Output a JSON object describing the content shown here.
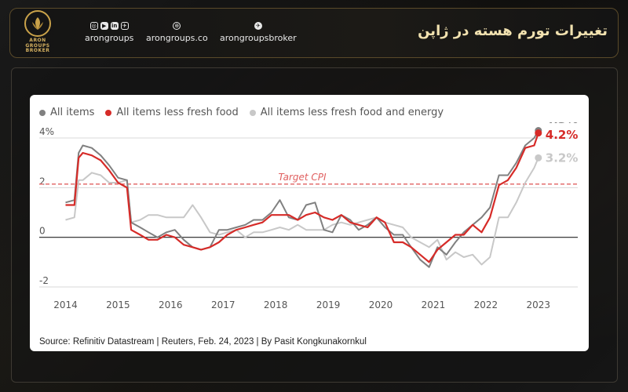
{
  "header": {
    "title": "تغییرات تورم هسته در ژاپن",
    "logo_text_lines": [
      "ARON",
      "GROUPS",
      "BROKER"
    ],
    "socials": [
      {
        "label": "arongroups",
        "icons": [
          "instagram-icon",
          "youtube-icon",
          "linkedin-icon",
          "telegram-square-icon"
        ]
      },
      {
        "label": "arongroups.co",
        "icons": [
          "globe-icon"
        ]
      },
      {
        "label": "arongroupsbroker",
        "icons": [
          "telegram-icon"
        ]
      }
    ]
  },
  "colors": {
    "accent_gold": "#c9a24a",
    "all_items": "#808080",
    "less_fresh_food": "#d62b28",
    "less_fresh_food_energy": "#c8c8c8",
    "target_line": "#e06060"
  },
  "source_text": "Source: Refinitiv Datastream | Reuters, Feb. 24, 2023 | By Pasit Kongkunakornkul",
  "chart_data": {
    "type": "line",
    "title": "",
    "xlabel": "",
    "ylabel": "",
    "ylim": [
      -2,
      4
    ],
    "xlim": [
      2013.5,
      2023.75
    ],
    "y_ticks": [
      {
        "value": 4,
        "label": "4%"
      },
      {
        "value": 2,
        "label": "2"
      },
      {
        "value": 0,
        "label": "0"
      },
      {
        "value": -2,
        "label": "-2"
      }
    ],
    "x_ticks": [
      {
        "value": 2014,
        "label": "2014"
      },
      {
        "value": 2015,
        "label": "2015"
      },
      {
        "value": 2016,
        "label": "2016"
      },
      {
        "value": 2017,
        "label": "2017"
      },
      {
        "value": 2018,
        "label": "2018"
      },
      {
        "value": 2019,
        "label": "2019"
      },
      {
        "value": 2020,
        "label": "2020"
      },
      {
        "value": 2021,
        "label": "2021"
      },
      {
        "value": 2022,
        "label": "2022"
      },
      {
        "value": 2023,
        "label": "2023"
      }
    ],
    "gridlines": [
      4,
      2,
      -2
    ],
    "target": {
      "value": 2,
      "label": "Target CPI"
    },
    "legend_position": "top-left",
    "series": [
      {
        "name": "All items",
        "color": "#808080",
        "end_label": "4.3%",
        "points": [
          [
            2014.0,
            1.4
          ],
          [
            2014.17,
            1.5
          ],
          [
            2014.25,
            3.4
          ],
          [
            2014.33,
            3.7
          ],
          [
            2014.5,
            3.6
          ],
          [
            2014.67,
            3.3
          ],
          [
            2014.83,
            2.9
          ],
          [
            2015.0,
            2.4
          ],
          [
            2015.17,
            2.3
          ],
          [
            2015.25,
            0.6
          ],
          [
            2015.42,
            0.4
          ],
          [
            2015.58,
            0.2
          ],
          [
            2015.75,
            0.0
          ],
          [
            2015.92,
            0.2
          ],
          [
            2016.08,
            0.3
          ],
          [
            2016.25,
            -0.1
          ],
          [
            2016.42,
            -0.4
          ],
          [
            2016.58,
            -0.5
          ],
          [
            2016.75,
            -0.4
          ],
          [
            2016.92,
            0.3
          ],
          [
            2017.08,
            0.3
          ],
          [
            2017.25,
            0.4
          ],
          [
            2017.42,
            0.5
          ],
          [
            2017.58,
            0.7
          ],
          [
            2017.75,
            0.7
          ],
          [
            2017.92,
            1.0
          ],
          [
            2018.08,
            1.5
          ],
          [
            2018.25,
            0.8
          ],
          [
            2018.42,
            0.7
          ],
          [
            2018.58,
            1.3
          ],
          [
            2018.75,
            1.4
          ],
          [
            2018.92,
            0.3
          ],
          [
            2019.08,
            0.2
          ],
          [
            2019.25,
            0.9
          ],
          [
            2019.42,
            0.7
          ],
          [
            2019.58,
            0.3
          ],
          [
            2019.75,
            0.5
          ],
          [
            2019.92,
            0.8
          ],
          [
            2020.08,
            0.4
          ],
          [
            2020.25,
            0.1
          ],
          [
            2020.42,
            0.1
          ],
          [
            2020.58,
            -0.4
          ],
          [
            2020.75,
            -0.9
          ],
          [
            2020.92,
            -1.2
          ],
          [
            2021.08,
            -0.4
          ],
          [
            2021.25,
            -0.7
          ],
          [
            2021.42,
            -0.2
          ],
          [
            2021.58,
            0.2
          ],
          [
            2021.75,
            0.5
          ],
          [
            2021.92,
            0.8
          ],
          [
            2022.08,
            1.2
          ],
          [
            2022.25,
            2.5
          ],
          [
            2022.42,
            2.5
          ],
          [
            2022.58,
            3.0
          ],
          [
            2022.75,
            3.7
          ],
          [
            2022.92,
            4.0
          ],
          [
            2023.0,
            4.3
          ]
        ]
      },
      {
        "name": "All items less fresh food",
        "color": "#d62b28",
        "end_label": "4.2%",
        "points": [
          [
            2014.0,
            1.3
          ],
          [
            2014.17,
            1.3
          ],
          [
            2014.25,
            3.2
          ],
          [
            2014.33,
            3.4
          ],
          [
            2014.5,
            3.3
          ],
          [
            2014.67,
            3.1
          ],
          [
            2014.83,
            2.7
          ],
          [
            2015.0,
            2.2
          ],
          [
            2015.17,
            2.0
          ],
          [
            2015.25,
            0.3
          ],
          [
            2015.42,
            0.1
          ],
          [
            2015.58,
            -0.1
          ],
          [
            2015.75,
            -0.1
          ],
          [
            2015.92,
            0.1
          ],
          [
            2016.08,
            0.0
          ],
          [
            2016.25,
            -0.3
          ],
          [
            2016.42,
            -0.4
          ],
          [
            2016.58,
            -0.5
          ],
          [
            2016.75,
            -0.4
          ],
          [
            2016.92,
            -0.2
          ],
          [
            2017.08,
            0.1
          ],
          [
            2017.25,
            0.3
          ],
          [
            2017.42,
            0.4
          ],
          [
            2017.58,
            0.5
          ],
          [
            2017.75,
            0.6
          ],
          [
            2017.92,
            0.9
          ],
          [
            2018.08,
            0.9
          ],
          [
            2018.25,
            0.9
          ],
          [
            2018.42,
            0.7
          ],
          [
            2018.58,
            0.9
          ],
          [
            2018.75,
            1.0
          ],
          [
            2018.92,
            0.8
          ],
          [
            2019.08,
            0.7
          ],
          [
            2019.25,
            0.9
          ],
          [
            2019.42,
            0.6
          ],
          [
            2019.58,
            0.5
          ],
          [
            2019.75,
            0.4
          ],
          [
            2019.92,
            0.8
          ],
          [
            2020.08,
            0.6
          ],
          [
            2020.25,
            -0.2
          ],
          [
            2020.42,
            -0.2
          ],
          [
            2020.58,
            -0.4
          ],
          [
            2020.75,
            -0.7
          ],
          [
            2020.92,
            -1.0
          ],
          [
            2021.08,
            -0.5
          ],
          [
            2021.25,
            -0.2
          ],
          [
            2021.42,
            0.1
          ],
          [
            2021.58,
            0.1
          ],
          [
            2021.75,
            0.5
          ],
          [
            2021.92,
            0.2
          ],
          [
            2022.08,
            0.8
          ],
          [
            2022.25,
            2.1
          ],
          [
            2022.42,
            2.3
          ],
          [
            2022.58,
            2.8
          ],
          [
            2022.75,
            3.6
          ],
          [
            2022.92,
            3.7
          ],
          [
            2023.0,
            4.2
          ]
        ]
      },
      {
        "name": "All items less fresh food and energy",
        "color": "#c8c8c8",
        "end_label": "3.2%",
        "points": [
          [
            2014.0,
            0.7
          ],
          [
            2014.17,
            0.8
          ],
          [
            2014.25,
            2.3
          ],
          [
            2014.33,
            2.3
          ],
          [
            2014.5,
            2.6
          ],
          [
            2014.67,
            2.5
          ],
          [
            2014.83,
            2.2
          ],
          [
            2015.0,
            2.2
          ],
          [
            2015.17,
            2.3
          ],
          [
            2015.25,
            0.6
          ],
          [
            2015.42,
            0.7
          ],
          [
            2015.58,
            0.9
          ],
          [
            2015.75,
            0.9
          ],
          [
            2015.92,
            0.8
          ],
          [
            2016.08,
            0.8
          ],
          [
            2016.25,
            0.8
          ],
          [
            2016.42,
            1.3
          ],
          [
            2016.58,
            0.8
          ],
          [
            2016.75,
            0.2
          ],
          [
            2016.92,
            0.1
          ],
          [
            2017.08,
            0.2
          ],
          [
            2017.25,
            0.3
          ],
          [
            2017.42,
            0.0
          ],
          [
            2017.58,
            0.2
          ],
          [
            2017.75,
            0.2
          ],
          [
            2017.92,
            0.3
          ],
          [
            2018.08,
            0.4
          ],
          [
            2018.25,
            0.3
          ],
          [
            2018.42,
            0.5
          ],
          [
            2018.58,
            0.3
          ],
          [
            2018.75,
            0.3
          ],
          [
            2018.92,
            0.3
          ],
          [
            2019.08,
            0.5
          ],
          [
            2019.25,
            0.6
          ],
          [
            2019.42,
            0.5
          ],
          [
            2019.58,
            0.6
          ],
          [
            2019.75,
            0.7
          ],
          [
            2019.92,
            0.8
          ],
          [
            2020.08,
            0.6
          ],
          [
            2020.25,
            0.5
          ],
          [
            2020.42,
            0.4
          ],
          [
            2020.58,
            0.0
          ],
          [
            2020.75,
            -0.2
          ],
          [
            2020.92,
            -0.4
          ],
          [
            2021.08,
            -0.1
          ],
          [
            2021.25,
            -0.9
          ],
          [
            2021.42,
            -0.6
          ],
          [
            2021.58,
            -0.8
          ],
          [
            2021.75,
            -0.7
          ],
          [
            2021.92,
            -1.1
          ],
          [
            2022.08,
            -0.8
          ],
          [
            2022.25,
            0.8
          ],
          [
            2022.42,
            0.8
          ],
          [
            2022.58,
            1.4
          ],
          [
            2022.75,
            2.2
          ],
          [
            2022.92,
            2.8
          ],
          [
            2023.0,
            3.2
          ]
        ]
      }
    ]
  }
}
